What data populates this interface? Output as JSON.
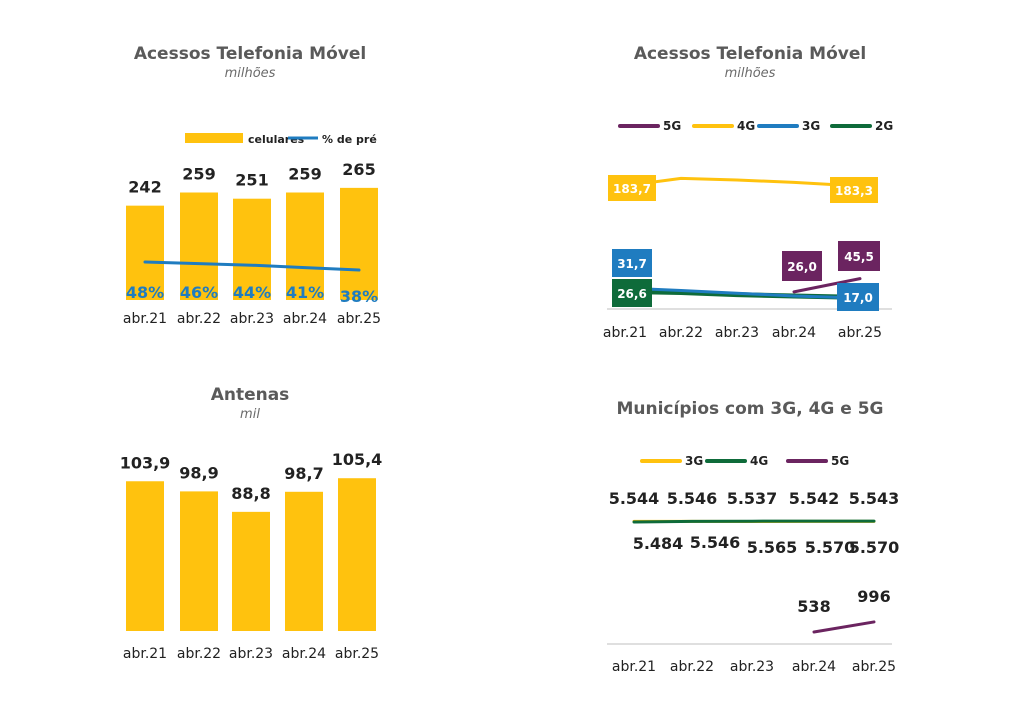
{
  "colors": {
    "yellow": "#FFC20E",
    "blue": "#1F7CC0",
    "purple": "#6B2460",
    "green": "#0E6B3A",
    "axis": "#bfbfbf"
  },
  "chart_data": [
    {
      "id": "mobile",
      "type": "bar",
      "title": "Acessos Telefonia Móvel",
      "subtitle": "milhões",
      "categories": [
        "abr.21",
        "abr.22",
        "abr.23",
        "abr.24",
        "abr.25"
      ],
      "series": [
        {
          "name": "celulares",
          "kind": "bar",
          "values": [
            242,
            259,
            251,
            259,
            265
          ],
          "labels": [
            "242",
            "259",
            "251",
            "259",
            "265"
          ]
        },
        {
          "name": "% de pré",
          "kind": "line",
          "values": [
            48,
            46,
            44,
            41,
            38
          ],
          "labels": [
            "48%",
            "46%",
            "44%",
            "41%",
            "38%"
          ]
        }
      ],
      "legend_position": "top-right"
    },
    {
      "id": "tech",
      "type": "line",
      "title": "Acessos Telefonia Móvel",
      "subtitle": "milhões",
      "categories": [
        "abr.21",
        "abr.22",
        "abr.23",
        "abr.24",
        "abr.25"
      ],
      "series": [
        {
          "name": "5G",
          "values": [
            null,
            null,
            null,
            26.0,
            45.5
          ],
          "labels": {
            "3": "26,0",
            "4": "45,5"
          }
        },
        {
          "name": "4G",
          "values": [
            183.7,
            193,
            191,
            188,
            183.3
          ],
          "labels": {
            "0": "183,7",
            "4": "183,3"
          }
        },
        {
          "name": "3G",
          "values": [
            31.7,
            28,
            24,
            20,
            17.0
          ],
          "labels": {
            "0": "31,7",
            "4": "17,0"
          }
        },
        {
          "name": "2G",
          "values": [
            26.6,
            25,
            22,
            20,
            18
          ],
          "labels": {
            "0": "26,6"
          }
        }
      ],
      "legend_position": "top"
    },
    {
      "id": "antenas",
      "type": "bar",
      "title": "Antenas",
      "subtitle": "mil",
      "categories": [
        "abr.21",
        "abr.22",
        "abr.23",
        "abr.24",
        "abr.25"
      ],
      "series": [
        {
          "name": "",
          "values": [
            103.9,
            98.9,
            88.8,
            98.7,
            105.4
          ],
          "labels": [
            "103,9",
            "98,9",
            "88,8",
            "98,7",
            "105,4"
          ]
        }
      ]
    },
    {
      "id": "municipios",
      "type": "line",
      "title": "Municípios com 3G, 4G e 5G",
      "subtitle": "",
      "categories": [
        "abr.21",
        "abr.22",
        "abr.23",
        "abr.24",
        "abr.25"
      ],
      "series": [
        {
          "name": "3G",
          "values": [
            5544,
            5546,
            5537,
            5542,
            5543
          ],
          "labels": [
            "5.544",
            "5.546",
            "5.537",
            "5.542",
            "5.543"
          ]
        },
        {
          "name": "4G",
          "values": [
            5484,
            5546,
            5565,
            5570,
            5570
          ],
          "labels": [
            "5.484",
            "5.546",
            "5.565",
            "5.570",
            "5.570"
          ]
        },
        {
          "name": "5G",
          "values": [
            null,
            null,
            null,
            538,
            996
          ],
          "labels": {
            "3": "538",
            "4": "996"
          }
        }
      ],
      "legend_position": "top"
    }
  ]
}
